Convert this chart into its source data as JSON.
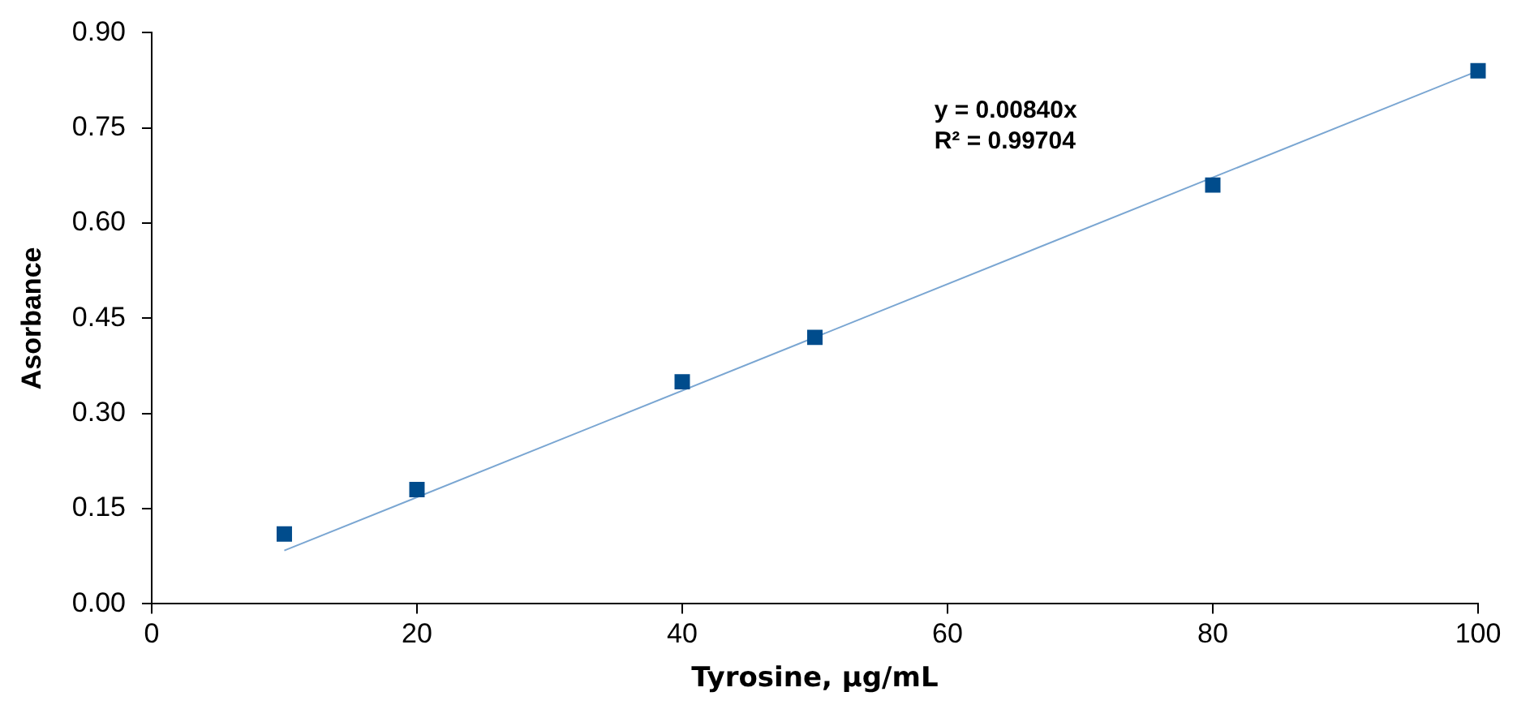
{
  "chart_data": {
    "type": "scatter",
    "xlabel": "Tyrosine, µg/mL",
    "ylabel": "Asorbance",
    "xlim": [
      0,
      100
    ],
    "xticks": [
      0,
      20,
      40,
      60,
      80,
      100
    ],
    "ylim": [
      0,
      0.9
    ],
    "yticks": [
      {
        "value": 0,
        "label": "0.00"
      },
      {
        "value": 0.15,
        "label": "0.15"
      },
      {
        "value": 0.3,
        "label": "0.30"
      },
      {
        "value": 0.45,
        "label": "0.45"
      },
      {
        "value": 0.6,
        "label": "0.60"
      },
      {
        "value": 0.75,
        "label": "0.75"
      },
      {
        "value": 0.9,
        "label": "0.90"
      }
    ],
    "grid": false,
    "legend": false,
    "series": [
      {
        "marker": "square",
        "color": "#004c8c",
        "x": [
          10,
          20,
          40,
          50,
          80,
          100
        ],
        "values": [
          0.11,
          0.18,
          0.35,
          0.42,
          0.66,
          0.84
        ]
      },
      {
        "type": "line",
        "marker": "none",
        "color": "#7aa6d2",
        "x": [
          10,
          100
        ],
        "values": [
          0.084,
          0.84
        ]
      }
    ],
    "annotations": [
      "y = 0.00840x",
      "R² = 0.99704"
    ]
  }
}
